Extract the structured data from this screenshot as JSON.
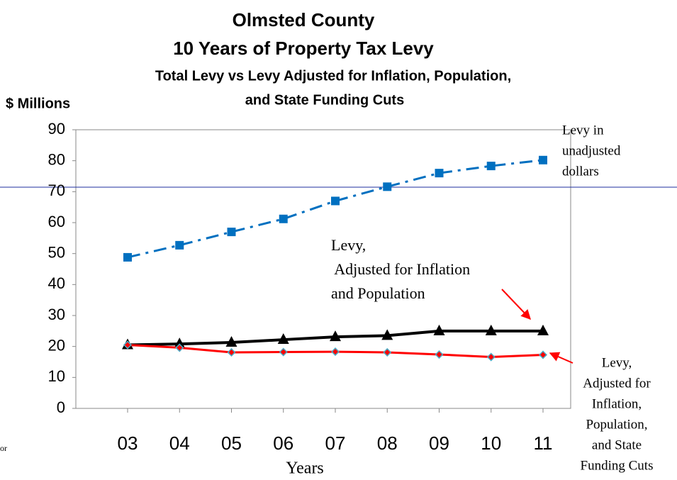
{
  "chart_data": {
    "type": "line",
    "title": [
      "Olmsted County",
      "10 Years of Property Tax Levy"
    ],
    "subtitle": [
      "Total Levy  vs  Levy Adjusted for Inflation, Population,",
      "and State Funding Cuts"
    ],
    "y_label": "$ Millions",
    "x_label": "Years",
    "categories": [
      "03",
      "04",
      "05",
      "06",
      "07",
      "08",
      "09",
      "10",
      "11"
    ],
    "series": [
      {
        "color": "#0070c0",
        "marker": "square",
        "dash": "dashdot",
        "values": [
          48.8,
          52.7,
          57,
          61.2,
          67,
          71.6,
          76,
          78.3,
          80.2
        ]
      },
      {
        "color": "#000000",
        "marker": "triangle",
        "dash": "solid",
        "values": [
          20.5,
          20.8,
          21.3,
          22.2,
          23.1,
          23.5,
          25,
          25,
          25
        ]
      },
      {
        "color": "#ff0000",
        "marker": "diamond",
        "dash": "solid",
        "values": [
          20.5,
          19.6,
          18.1,
          18.2,
          18.3,
          18.1,
          17.4,
          16.6,
          17.3
        ]
      }
    ],
    "ylim": [
      0,
      90
    ],
    "yticks": [
      0,
      10,
      20,
      30,
      40,
      50,
      60,
      70,
      80,
      90
    ],
    "annotations": [
      {
        "lines": [
          "Levy in",
          "unadjusted",
          "dollars"
        ]
      },
      {
        "lines": [
          "Levy,",
          " Adjusted for Inflation",
          "and Population"
        ]
      },
      {
        "lines": [
          "Levy,",
          "Adjusted for",
          "Inflation,",
          "Population,",
          "and State",
          "Funding Cuts"
        ]
      }
    ],
    "fragment": "or"
  }
}
